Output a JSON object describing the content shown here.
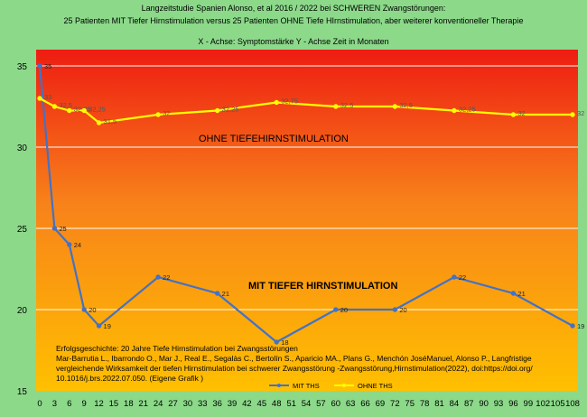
{
  "chart_data": {
    "type": "line",
    "title": [
      "Langzeitstudie Spanien  Alonso, et al 2016 / 2022  bei SCHWEREN Zwangstörungen:",
      "25  Patienten MIT   Tiefer Hirnstimulation versus  25 Patienten OHNE Tiefe HIrnstimulation, aber weiterer konventioneller Therapie"
    ],
    "axis_note": "X  - Achse: Symptomstärke     Y  - Achse Zeit in Monaten",
    "x_ticks": [
      0,
      3,
      6,
      9,
      12,
      15,
      18,
      21,
      24,
      27,
      30,
      33,
      36,
      39,
      42,
      45,
      48,
      51,
      54,
      57,
      60,
      63,
      66,
      69,
      72,
      75,
      78,
      81,
      84,
      87,
      90,
      93,
      96,
      99,
      102,
      105,
      108
    ],
    "y_ticks": [
      15,
      20,
      25,
      30,
      35
    ],
    "xlim": [
      0,
      108
    ],
    "ylim": [
      15,
      36
    ],
    "grid": "horizontal",
    "legend": "bottom-center",
    "series": [
      {
        "name": "MIT THS",
        "color": "#4472c4",
        "points": [
          [
            0,
            35
          ],
          [
            3,
            25
          ],
          [
            6,
            24
          ],
          [
            9,
            20
          ],
          [
            12,
            19
          ],
          [
            24,
            22
          ],
          [
            36,
            21
          ],
          [
            48,
            18
          ],
          [
            60,
            20
          ],
          [
            72,
            20
          ],
          [
            84,
            22
          ],
          [
            96,
            21
          ],
          [
            108,
            19
          ]
        ],
        "labels": [
          "35",
          "25",
          "24",
          "20",
          "19",
          "22",
          "21",
          "18",
          "20",
          "20",
          "22",
          "21",
          "19"
        ]
      },
      {
        "name": "OHNE THS",
        "color": "#ffff00",
        "points": [
          [
            0,
            33
          ],
          [
            3,
            32.5
          ],
          [
            6,
            32.25
          ],
          [
            9,
            32.25
          ],
          [
            12,
            31.5
          ],
          [
            24,
            32
          ],
          [
            36,
            32.25
          ],
          [
            48,
            32.75
          ],
          [
            60,
            32.5
          ],
          [
            72,
            32.5
          ],
          [
            84,
            32.25
          ],
          [
            96,
            32
          ],
          [
            108,
            32
          ]
        ],
        "labels": [
          "33",
          "32,5",
          "32,25",
          "32,25",
          "31,5",
          "32",
          "32,25",
          "32,75",
          "32,5",
          "32,5",
          "32,25",
          "32",
          "32"
        ]
      }
    ],
    "annotations": [
      "OHNE TIEFEHIRNSTIMULATION",
      "MIT TIEFER HIRNSTIMULATION"
    ],
    "source_text": [
      "Erfolgsgeschichte: 20 Jahre Tiefe Hirnstimulation bei Zwangsstörungen",
      " Mar-Barrutia L., Ibarrondo O., Mar J., Real E., Segalàs C., Bertolín S., Aparicio MA., Plans G., Menchón JoséManuel, Alonso P., Langfristige",
      "vergleichende Wirksamkeit der tiefen Hirnstimulation bei schwerer Zwangsstörung -Zwangsstörung,Hirnstimulation(2022), doi:https://doi.org/",
      "10.1016/j.brs.2022.07.050.   (Eigene Grafik )"
    ],
    "colors": {
      "outer_background": "#8cd98a",
      "plot_top": "#ee1c12",
      "plot_bottom": "#ffc000",
      "grid": "#ffffff"
    }
  }
}
